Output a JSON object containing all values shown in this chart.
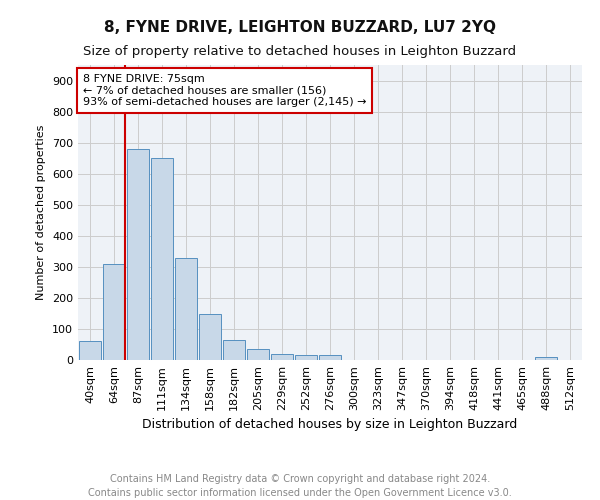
{
  "title": "8, FYNE DRIVE, LEIGHTON BUZZARD, LU7 2YQ",
  "subtitle": "Size of property relative to detached houses in Leighton Buzzard",
  "xlabel": "Distribution of detached houses by size in Leighton Buzzard",
  "ylabel": "Number of detached properties",
  "categories": [
    "40sqm",
    "64sqm",
    "87sqm",
    "111sqm",
    "134sqm",
    "158sqm",
    "182sqm",
    "205sqm",
    "229sqm",
    "252sqm",
    "276sqm",
    "300sqm",
    "323sqm",
    "347sqm",
    "370sqm",
    "394sqm",
    "418sqm",
    "441sqm",
    "465sqm",
    "488sqm",
    "512sqm"
  ],
  "values": [
    60,
    310,
    680,
    650,
    330,
    148,
    65,
    35,
    20,
    15,
    15,
    0,
    0,
    0,
    0,
    0,
    0,
    0,
    0,
    10,
    0
  ],
  "bar_color": "#c8d8e8",
  "bar_edge_color": "#5590c0",
  "annotation_box_text": "8 FYNE DRIVE: 75sqm\n← 7% of detached houses are smaller (156)\n93% of semi-detached houses are larger (2,145) →",
  "annotation_box_color": "#ffffff",
  "annotation_box_edge_color": "#cc0000",
  "ylim": [
    0,
    950
  ],
  "yticks": [
    0,
    100,
    200,
    300,
    400,
    500,
    600,
    700,
    800,
    900
  ],
  "grid_color": "#cccccc",
  "bg_color": "#eef2f7",
  "footer_text": "Contains HM Land Registry data © Crown copyright and database right 2024.\nContains public sector information licensed under the Open Government Licence v3.0.",
  "title_fontsize": 11,
  "subtitle_fontsize": 9.5,
  "footer_fontsize": 7,
  "ylabel_fontsize": 8,
  "xlabel_fontsize": 9,
  "tick_fontsize": 8
}
